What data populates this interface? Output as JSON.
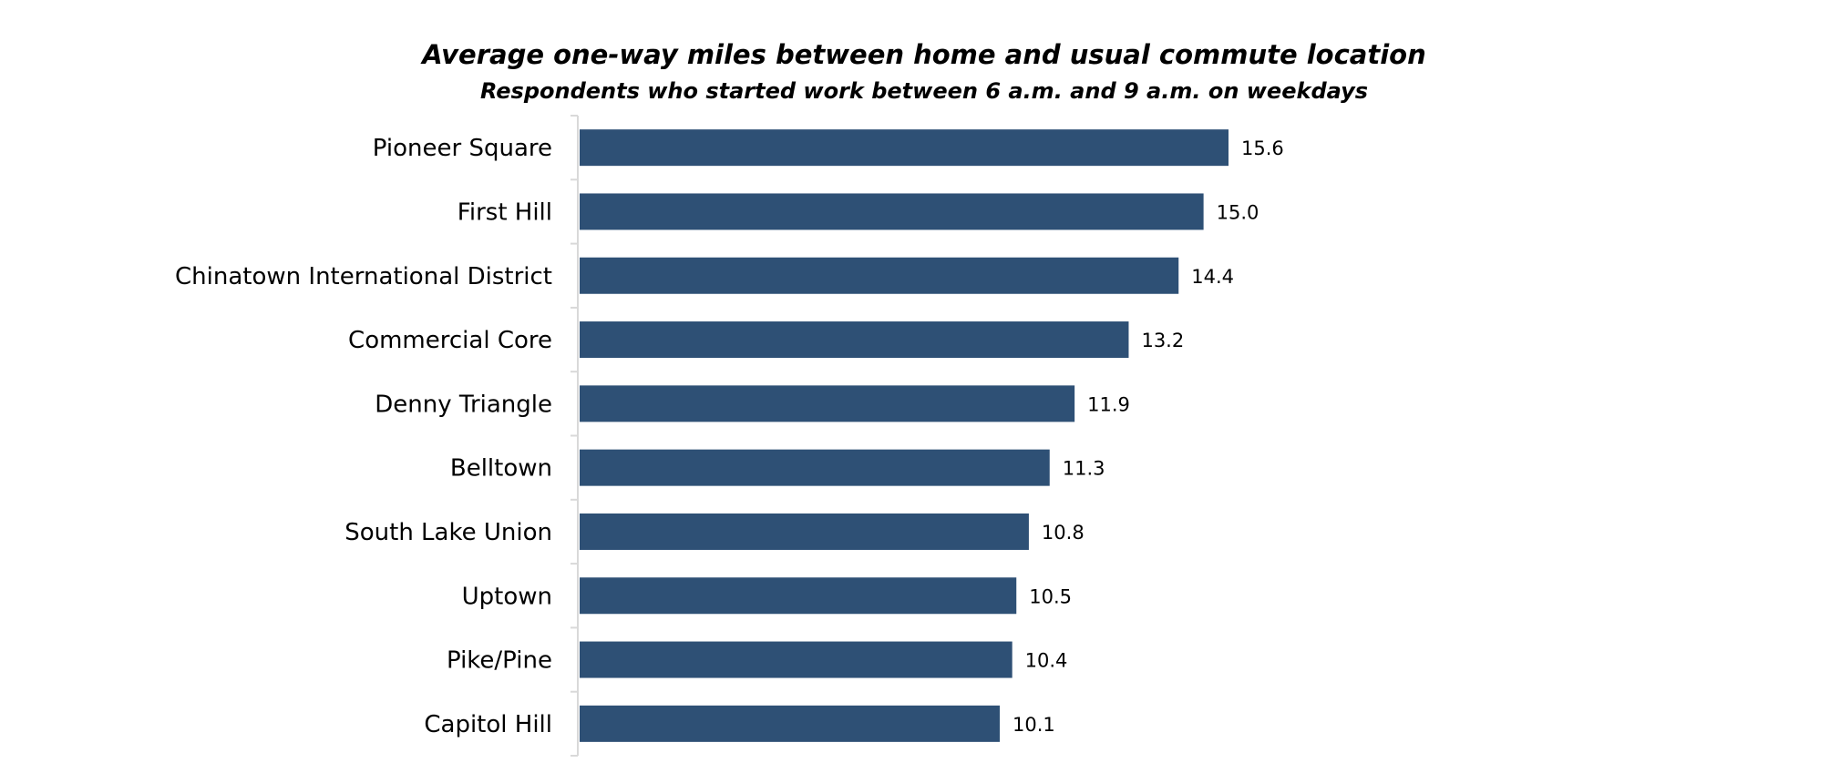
{
  "chart_data": {
    "type": "bar",
    "orientation": "horizontal",
    "title": "Average one-way miles between home and usual commute location",
    "subtitle": "Respondents who started work between 6 a.m. and 9 a.m. on weekdays",
    "categories": [
      "Pioneer Square",
      "First Hill",
      "Chinatown International District",
      "Commercial Core",
      "Denny Triangle",
      "Belltown",
      "South Lake Union",
      "Uptown",
      "Pike/Pine",
      "Capitol Hill"
    ],
    "values": [
      15.6,
      15.0,
      14.4,
      13.2,
      11.9,
      11.3,
      10.8,
      10.5,
      10.4,
      10.1
    ],
    "value_labels": [
      "15.6",
      "15.0",
      "14.4",
      "13.2",
      "11.9",
      "11.3",
      "10.8",
      "10.5",
      "10.4",
      "10.1"
    ],
    "xlim": [
      0,
      15.6
    ],
    "bar_color": "#2e5075",
    "grid": false,
    "legend": "none"
  }
}
